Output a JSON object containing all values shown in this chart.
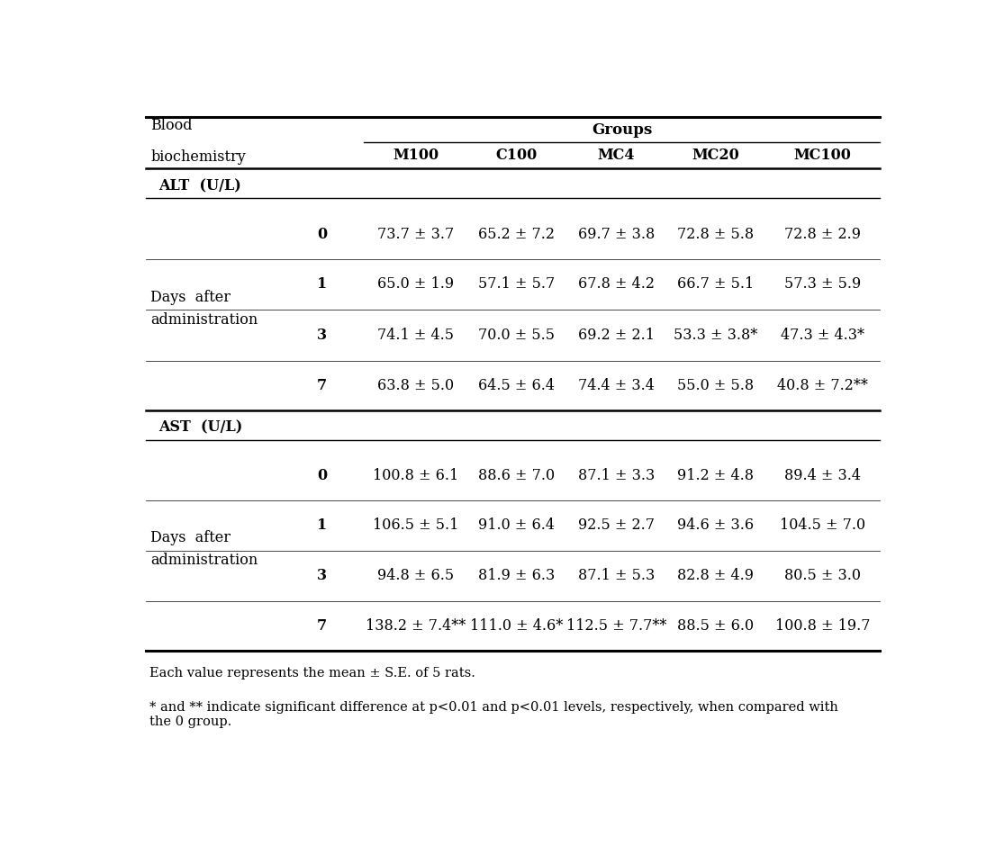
{
  "sections": [
    {
      "label": "ALT (U/L)",
      "days": [
        "0",
        "1",
        "3",
        "7"
      ],
      "data": [
        [
          "73.7 ± 3.7",
          "65.2 ± 7.2",
          "69.7 ± 3.8",
          "72.8 ± 5.8",
          "72.8 ± 2.9"
        ],
        [
          "65.0 ± 1.9",
          "57.1 ± 5.7",
          "67.8 ± 4.2",
          "66.7 ± 5.1",
          "57.3 ± 5.9"
        ],
        [
          "74.1 ± 4.5",
          "70.0 ± 5.5",
          "69.2 ± 2.1",
          "53.3 ± 3.8*",
          "47.3 ± 4.3*"
        ],
        [
          "63.8 ± 5.0",
          "64.5 ± 6.4",
          "74.4 ± 3.4",
          "55.0 ± 5.8",
          "40.8 ± 7.2**"
        ]
      ]
    },
    {
      "label": "AST (U/L)",
      "days": [
        "0",
        "1",
        "3",
        "7"
      ],
      "data": [
        [
          "100.8 ± 6.1",
          "88.6 ± 7.0",
          "87.1 ± 3.3",
          "91.2 ± 4.8",
          "89.4 ± 3.4"
        ],
        [
          "106.5 ± 5.1",
          "91.0 ± 6.4",
          "92.5 ± 2.7",
          "94.6 ± 3.6",
          "104.5 ± 7.0"
        ],
        [
          "94.8 ± 6.5",
          "81.9 ± 6.3",
          "87.1 ± 5.3",
          "82.8 ± 4.9",
          "80.5 ± 3.0"
        ],
        [
          "138.2 ± 7.4**",
          "111.0 ± 4.6*",
          "112.5 ± 7.7**",
          "88.5 ± 6.0",
          "100.8 ± 19.7"
        ]
      ]
    }
  ],
  "group_headers": [
    "M100",
    "C100",
    "MC4",
    "MC20",
    "MC100"
  ],
  "footnote1": "Each value represents the mean ± S.E. of 5 rats.",
  "footnote2": "* and ** indicate significant difference at p<0.01 and p<0.01 levels, respectively, when compared with\nthe 0 group.",
  "bg_color": "#ffffff",
  "text_color": "#000000"
}
